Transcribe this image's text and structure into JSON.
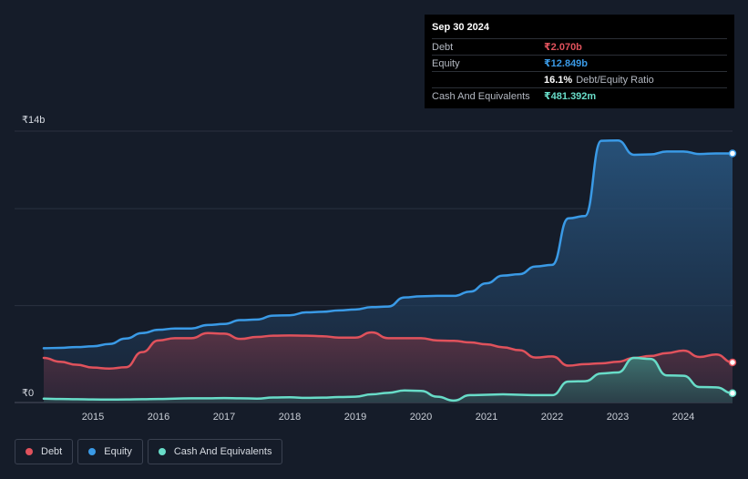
{
  "tooltip": {
    "date": "Sep 30 2024",
    "debt_label": "Debt",
    "debt_value": "₹2.070b",
    "equity_label": "Equity",
    "equity_value": "₹12.849b",
    "ratio_value": "16.1%",
    "ratio_label": "Debt/Equity Ratio",
    "cash_label": "Cash And Equivalents",
    "cash_value": "₹481.392m"
  },
  "legend": [
    {
      "label": "Debt",
      "color": "#e0525c"
    },
    {
      "label": "Equity",
      "color": "#3a9ae6"
    },
    {
      "label": "Cash And Equivalents",
      "color": "#68dcc8"
    }
  ],
  "colors": {
    "debt": "#e0525c",
    "equity": "#3a9ae6",
    "cash": "#68dcc8",
    "background": "#151c29"
  },
  "chart_data": {
    "type": "area",
    "y_unit": "₹ billions",
    "ylim": [
      0,
      14
    ],
    "y_tick_labels": [
      {
        "value": 14,
        "label": "₹14b"
      },
      {
        "value": 0,
        "label": "₹0"
      }
    ],
    "y_gridlines": [
      0,
      5,
      10,
      14
    ],
    "x_tick_labels": [
      "2015",
      "2016",
      "2017",
      "2018",
      "2019",
      "2020",
      "2021",
      "2022",
      "2023",
      "2024"
    ],
    "xlim": [
      2014.25,
      2024.75
    ],
    "series": [
      {
        "name": "Debt",
        "points": [
          [
            2014.25,
            2.3
          ],
          [
            2014.5,
            2.1
          ],
          [
            2014.75,
            1.95
          ],
          [
            2015.0,
            1.8
          ],
          [
            2015.25,
            1.75
          ],
          [
            2015.5,
            1.82
          ],
          [
            2015.75,
            2.6
          ],
          [
            2016.0,
            3.2
          ],
          [
            2016.25,
            3.32
          ],
          [
            2016.5,
            3.32
          ],
          [
            2016.75,
            3.58
          ],
          [
            2017.0,
            3.55
          ],
          [
            2017.25,
            3.28
          ],
          [
            2017.5,
            3.38
          ],
          [
            2017.75,
            3.45
          ],
          [
            2018.0,
            3.46
          ],
          [
            2018.25,
            3.45
          ],
          [
            2018.5,
            3.42
          ],
          [
            2018.75,
            3.35
          ],
          [
            2019.0,
            3.35
          ],
          [
            2019.25,
            3.62
          ],
          [
            2019.5,
            3.32
          ],
          [
            2019.75,
            3.32
          ],
          [
            2020.0,
            3.32
          ],
          [
            2020.25,
            3.2
          ],
          [
            2020.5,
            3.18
          ],
          [
            2020.75,
            3.1
          ],
          [
            2021.0,
            3.0
          ],
          [
            2021.25,
            2.85
          ],
          [
            2021.5,
            2.7
          ],
          [
            2021.75,
            2.32
          ],
          [
            2022.0,
            2.38
          ],
          [
            2022.25,
            1.9
          ],
          [
            2022.5,
            1.98
          ],
          [
            2022.75,
            2.02
          ],
          [
            2023.0,
            2.1
          ],
          [
            2023.25,
            2.3
          ],
          [
            2023.5,
            2.4
          ],
          [
            2023.75,
            2.55
          ],
          [
            2024.0,
            2.68
          ],
          [
            2024.25,
            2.35
          ],
          [
            2024.5,
            2.48
          ],
          [
            2024.75,
            2.07
          ]
        ]
      },
      {
        "name": "Equity",
        "points": [
          [
            2014.25,
            2.8
          ],
          [
            2014.5,
            2.82
          ],
          [
            2014.75,
            2.86
          ],
          [
            2015.0,
            2.9
          ],
          [
            2015.25,
            3.02
          ],
          [
            2015.5,
            3.3
          ],
          [
            2015.75,
            3.58
          ],
          [
            2016.0,
            3.75
          ],
          [
            2016.25,
            3.82
          ],
          [
            2016.5,
            3.82
          ],
          [
            2016.75,
            4.0
          ],
          [
            2017.0,
            4.05
          ],
          [
            2017.25,
            4.25
          ],
          [
            2017.5,
            4.28
          ],
          [
            2017.75,
            4.48
          ],
          [
            2018.0,
            4.5
          ],
          [
            2018.25,
            4.65
          ],
          [
            2018.5,
            4.68
          ],
          [
            2018.75,
            4.75
          ],
          [
            2019.0,
            4.8
          ],
          [
            2019.25,
            4.92
          ],
          [
            2019.5,
            4.95
          ],
          [
            2019.75,
            5.42
          ],
          [
            2020.0,
            5.48
          ],
          [
            2020.25,
            5.5
          ],
          [
            2020.5,
            5.5
          ],
          [
            2020.75,
            5.72
          ],
          [
            2021.0,
            6.15
          ],
          [
            2021.25,
            6.55
          ],
          [
            2021.5,
            6.62
          ],
          [
            2021.75,
            7.02
          ],
          [
            2022.0,
            7.1
          ],
          [
            2022.25,
            9.5
          ],
          [
            2022.5,
            9.62
          ],
          [
            2022.75,
            13.5
          ],
          [
            2023.0,
            13.52
          ],
          [
            2023.25,
            12.78
          ],
          [
            2023.5,
            12.8
          ],
          [
            2023.75,
            12.95
          ],
          [
            2024.0,
            12.95
          ],
          [
            2024.25,
            12.82
          ],
          [
            2024.5,
            12.85
          ],
          [
            2024.75,
            12.849
          ]
        ]
      },
      {
        "name": "Cash And Equivalents",
        "points": [
          [
            2014.25,
            0.2
          ],
          [
            2014.5,
            0.18
          ],
          [
            2014.75,
            0.17
          ],
          [
            2015.0,
            0.16
          ],
          [
            2015.25,
            0.15
          ],
          [
            2015.5,
            0.16
          ],
          [
            2015.75,
            0.17
          ],
          [
            2016.0,
            0.18
          ],
          [
            2016.25,
            0.2
          ],
          [
            2016.5,
            0.22
          ],
          [
            2016.75,
            0.22
          ],
          [
            2017.0,
            0.23
          ],
          [
            2017.25,
            0.22
          ],
          [
            2017.5,
            0.2
          ],
          [
            2017.75,
            0.26
          ],
          [
            2018.0,
            0.27
          ],
          [
            2018.25,
            0.24
          ],
          [
            2018.5,
            0.25
          ],
          [
            2018.75,
            0.28
          ],
          [
            2019.0,
            0.3
          ],
          [
            2019.25,
            0.42
          ],
          [
            2019.5,
            0.5
          ],
          [
            2019.75,
            0.62
          ],
          [
            2020.0,
            0.6
          ],
          [
            2020.25,
            0.3
          ],
          [
            2020.5,
            0.1
          ],
          [
            2020.75,
            0.38
          ],
          [
            2021.0,
            0.4
          ],
          [
            2021.25,
            0.42
          ],
          [
            2021.5,
            0.4
          ],
          [
            2021.75,
            0.38
          ],
          [
            2022.0,
            0.38
          ],
          [
            2022.25,
            1.08
          ],
          [
            2022.5,
            1.1
          ],
          [
            2022.75,
            1.5
          ],
          [
            2023.0,
            1.55
          ],
          [
            2023.25,
            2.3
          ],
          [
            2023.5,
            2.25
          ],
          [
            2023.75,
            1.4
          ],
          [
            2024.0,
            1.38
          ],
          [
            2024.25,
            0.8
          ],
          [
            2024.5,
            0.78
          ],
          [
            2024.75,
            0.481
          ]
        ]
      }
    ]
  }
}
